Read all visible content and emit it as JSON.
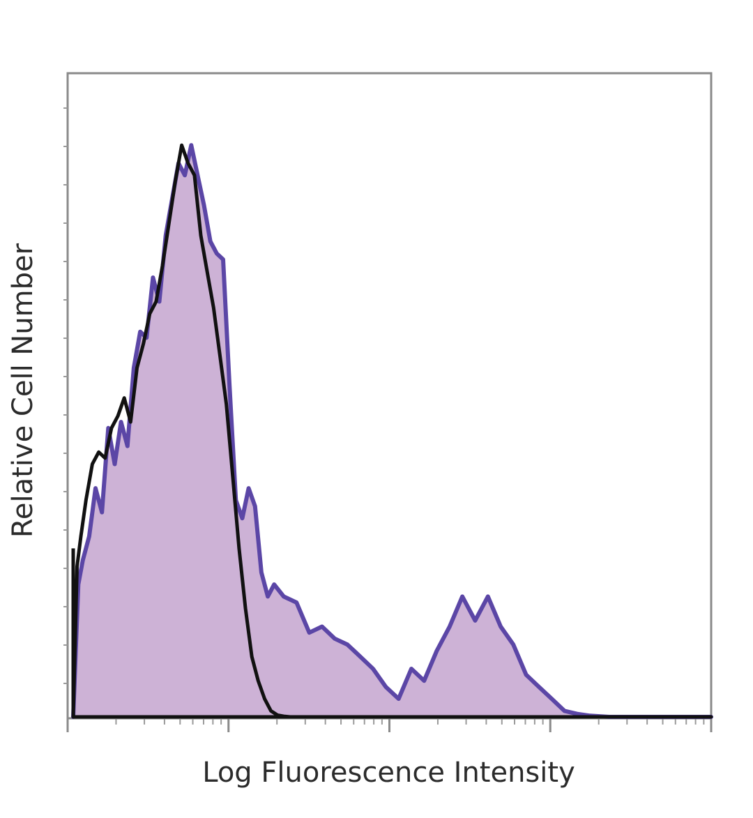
{
  "chart_data": {
    "type": "area",
    "title": "",
    "xlabel": "Log Fluorescence Intensity",
    "ylabel": "Relative Cell Number",
    "xscale": "log",
    "xlim": [
      0,
      100
    ],
    "ylim": [
      0,
      100
    ],
    "grid": false,
    "legend": "none",
    "series": [
      {
        "style": "filled",
        "fill_color": "#cdb2d6",
        "line_color": "#5b46a6",
        "x": [
          0.0,
          0.8,
          1.5,
          2.5,
          3.5,
          4.5,
          5.5,
          6.5,
          7.5,
          8.5,
          9.5,
          10.5,
          11.5,
          12.5,
          13.5,
          14.5,
          15.5,
          16.5,
          17.5,
          18.5,
          19.5,
          20.5,
          21.5,
          22.5,
          23.5,
          24.5,
          25.5,
          26.5,
          27.5,
          28.5,
          29.5,
          30.5,
          31.5,
          33.0,
          35.0,
          37.0,
          39.0,
          41.0,
          43.0,
          45.0,
          47.0,
          49.0,
          51.0,
          53.0,
          55.0,
          57.0,
          59.0,
          61.0,
          63.0,
          65.0,
          67.0,
          69.0,
          71.0,
          73.0,
          75.0,
          77.0,
          79.0,
          81.0,
          84.0,
          88.0,
          92.0,
          96.0,
          100.0
        ],
        "y": [
          0,
          22,
          26,
          30,
          38,
          34,
          48,
          42,
          49,
          45,
          58,
          64,
          63,
          73,
          69,
          80,
          86,
          92,
          90,
          95,
          90,
          85,
          79,
          77,
          76,
          55,
          36,
          33,
          38,
          35,
          24,
          20,
          22,
          20,
          19,
          14,
          15,
          13,
          12,
          10,
          8,
          5,
          3,
          8,
          6,
          11,
          15,
          20,
          16,
          20,
          15,
          12,
          7,
          5,
          3,
          1,
          0.5,
          0.2,
          0,
          0,
          0,
          0,
          0
        ]
      },
      {
        "style": "line",
        "line_color": "#111111",
        "x": [
          0.0,
          0.6,
          1.2,
          2.0,
          3.0,
          4.0,
          5.0,
          6.0,
          7.0,
          8.0,
          9.0,
          10.0,
          11.0,
          12.0,
          13.0,
          14.0,
          15.0,
          16.0,
          17.0,
          18.0,
          19.0,
          20.0,
          21.0,
          22.0,
          23.0,
          24.0,
          25.0,
          26.0,
          27.0,
          28.0,
          29.0,
          30.0,
          31.0,
          32.0,
          33.0,
          34.0,
          35.0,
          36.0,
          38.0,
          42.0,
          50.0,
          60.0,
          70.0,
          80.0,
          90.0,
          100.0
        ],
        "y": [
          0,
          25,
          30,
          36,
          42,
          44,
          43,
          48,
          50,
          53,
          49,
          58,
          62,
          67,
          69,
          75,
          82,
          89,
          95,
          92,
          90,
          80,
          74,
          68,
          60,
          52,
          40,
          28,
          18,
          10,
          6,
          3,
          1,
          0.3,
          0.1,
          0,
          0,
          0,
          0,
          0,
          0,
          0,
          0,
          0,
          0,
          0
        ]
      }
    ]
  }
}
